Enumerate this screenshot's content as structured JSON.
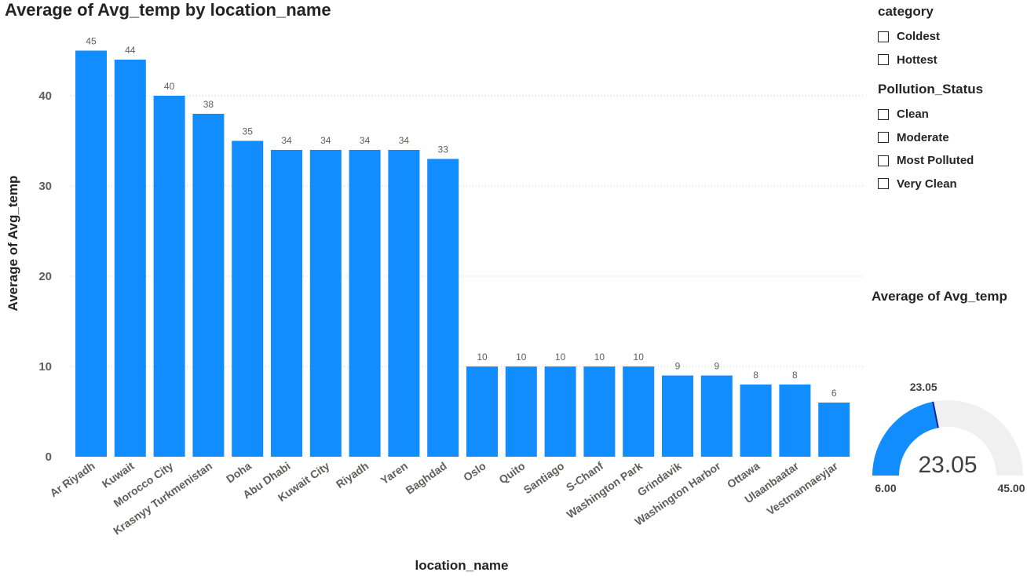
{
  "chart_data": {
    "type": "bar",
    "title": "Average of Avg_temp by location_name",
    "xlabel": "location_name",
    "ylabel": "Average of Avg_temp",
    "categories": [
      "Ar Riyadh",
      "Kuwait",
      "Morocco City",
      "Krasnyy Turkmenistan",
      "Doha",
      "Abu Dhabi",
      "Kuwait City",
      "Riyadh",
      "Yaren",
      "Baghdad",
      "Oslo",
      "Quito",
      "Santiago",
      "S-Chanf",
      "Washington Park",
      "Grindavik",
      "Washington Harbor",
      "Ottawa",
      "Ulaanbaatar",
      "Vestmannaeyjar"
    ],
    "values": [
      45,
      44,
      40,
      38,
      35,
      34,
      34,
      34,
      34,
      33,
      10,
      10,
      10,
      10,
      10,
      9,
      9,
      8,
      8,
      6
    ],
    "ylim": [
      0,
      45
    ],
    "yticks": [
      0,
      10,
      20,
      30,
      40
    ],
    "ytick_labels": [
      "0",
      "10",
      "20",
      "30",
      "40"
    ],
    "grid": true,
    "bar_color": "#118DFF"
  },
  "slicers": [
    {
      "title": "category",
      "items": [
        "Coldest",
        "Hottest"
      ]
    },
    {
      "title": "Pollution_Status",
      "items": [
        "Clean",
        "Moderate",
        "Most Polluted",
        "Very Clean"
      ]
    }
  ],
  "gauge": {
    "title": "Average of Avg_temp",
    "value": 23.05,
    "value_label": "23.05",
    "target_label": "23.05",
    "min": 6,
    "max": 45,
    "min_label": "6.00",
    "max_label": "45.00",
    "fill_color": "#118DFF",
    "track_color": "#F0F0F0",
    "target_color": "#12239E"
  }
}
